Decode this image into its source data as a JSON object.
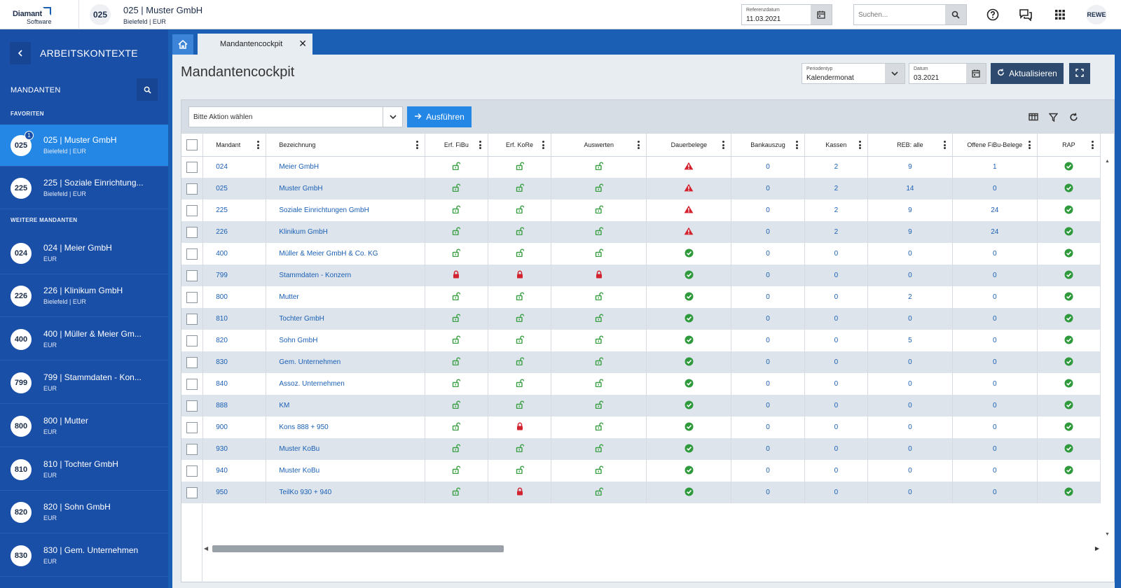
{
  "app": {
    "logo_line1": "Diamant",
    "logo_line2": "Software",
    "tenant_code": "025",
    "tenant_name": "025 | Muster GmbH",
    "tenant_sub": "Bielefeld | EUR",
    "ref_label": "Referenzdatum",
    "ref_value": "11.03.2021",
    "search_placeholder": "Suchen...",
    "user": "REWE"
  },
  "sidebar": {
    "title": "ARBEITSKONTEXTE",
    "section": "MANDANTEN",
    "group_favorites": "FAVORITEN",
    "group_more": "WEITERE MANDANTEN",
    "favorites": [
      {
        "code": "025",
        "name": "025 | Muster GmbH",
        "sub": "Bielefeld | EUR",
        "badge": "1"
      },
      {
        "code": "225",
        "name": "225 | Soziale Einrichtung...",
        "sub": "Bielefeld | EUR"
      }
    ],
    "more": [
      {
        "code": "024",
        "name": "024 | Meier GmbH",
        "sub": "EUR"
      },
      {
        "code": "226",
        "name": "226 | Klinikum GmbH",
        "sub": "Bielefeld | EUR"
      },
      {
        "code": "400",
        "name": "400 | Müller & Meier Gm...",
        "sub": "EUR"
      },
      {
        "code": "799",
        "name": "799 | Stammdaten - Kon...",
        "sub": "EUR"
      },
      {
        "code": "800",
        "name": "800 | Mutter",
        "sub": "EUR"
      },
      {
        "code": "810",
        "name": "810 | Tochter GmbH",
        "sub": "EUR"
      },
      {
        "code": "820",
        "name": "820 | Sohn GmbH",
        "sub": "EUR"
      },
      {
        "code": "830",
        "name": "830 | Gem. Unternehmen",
        "sub": "EUR"
      }
    ]
  },
  "tabs": {
    "active": "Mandantencockpit"
  },
  "page": {
    "title": "Mandantencockpit",
    "period_label": "Periodentyp",
    "period_value": "Kalendermonat",
    "date_label": "Datum",
    "date_value": "03.2021",
    "refresh_label": "Aktualisieren",
    "action_placeholder": "Bitte Aktion wählen",
    "run_label": "Ausführen"
  },
  "colors": {
    "sidebar": "#1a4fa8",
    "accent": "#2487e6",
    "ok": "#2e9a3c",
    "lock_open": "#3aa043",
    "lock_closed": "#d3232f",
    "warn": "#d3232f"
  },
  "table": {
    "headers": [
      "Mandant",
      "Bezeichnung",
      "Erf. FiBu",
      "Erf. KoRe",
      "Auswerten",
      "Dauerbelege",
      "Bankauszug",
      "Kassen",
      "REB: alle",
      "Offene FiBu-Belege",
      "RAP"
    ],
    "rows": [
      {
        "m": "024",
        "b": "Meier GmbH",
        "fibu": "open",
        "kore": "open",
        "ausw": "open",
        "dauer": "warn",
        "bank": "0",
        "kassen": "2",
        "reb": "9",
        "offen": "1",
        "rap": "ok"
      },
      {
        "m": "025",
        "b": "Muster GmbH",
        "fibu": "open",
        "kore": "open",
        "ausw": "open",
        "dauer": "warn",
        "bank": "0",
        "kassen": "2",
        "reb": "14",
        "offen": "0",
        "rap": "ok"
      },
      {
        "m": "225",
        "b": "Soziale Einrichtungen GmbH",
        "fibu": "open",
        "kore": "open",
        "ausw": "open",
        "dauer": "warn",
        "bank": "0",
        "kassen": "2",
        "reb": "9",
        "offen": "24",
        "rap": "ok"
      },
      {
        "m": "226",
        "b": "Klinikum GmbH",
        "fibu": "open",
        "kore": "open",
        "ausw": "open",
        "dauer": "warn",
        "bank": "0",
        "kassen": "2",
        "reb": "9",
        "offen": "24",
        "rap": "ok"
      },
      {
        "m": "400",
        "b": "Müller & Meier GmbH & Co. KG",
        "fibu": "open",
        "kore": "open",
        "ausw": "open",
        "dauer": "ok",
        "bank": "0",
        "kassen": "0",
        "reb": "0",
        "offen": "0",
        "rap": "ok"
      },
      {
        "m": "799",
        "b": "Stammdaten - Konzern",
        "fibu": "closed",
        "kore": "closed",
        "ausw": "closed",
        "dauer": "ok",
        "bank": "0",
        "kassen": "0",
        "reb": "0",
        "offen": "0",
        "rap": "ok"
      },
      {
        "m": "800",
        "b": "Mutter",
        "fibu": "open",
        "kore": "open",
        "ausw": "open",
        "dauer": "ok",
        "bank": "0",
        "kassen": "0",
        "reb": "2",
        "offen": "0",
        "rap": "ok"
      },
      {
        "m": "810",
        "b": "Tochter GmbH",
        "fibu": "open",
        "kore": "open",
        "ausw": "open",
        "dauer": "ok",
        "bank": "0",
        "kassen": "0",
        "reb": "0",
        "offen": "0",
        "rap": "ok"
      },
      {
        "m": "820",
        "b": "Sohn GmbH",
        "fibu": "open",
        "kore": "open",
        "ausw": "open",
        "dauer": "ok",
        "bank": "0",
        "kassen": "0",
        "reb": "5",
        "offen": "0",
        "rap": "ok"
      },
      {
        "m": "830",
        "b": "Gem. Unternehmen",
        "fibu": "open",
        "kore": "open",
        "ausw": "open",
        "dauer": "ok",
        "bank": "0",
        "kassen": "0",
        "reb": "0",
        "offen": "0",
        "rap": "ok"
      },
      {
        "m": "840",
        "b": "Assoz. Unternehmen",
        "fibu": "open",
        "kore": "open",
        "ausw": "open",
        "dauer": "ok",
        "bank": "0",
        "kassen": "0",
        "reb": "0",
        "offen": "0",
        "rap": "ok"
      },
      {
        "m": "888",
        "b": "KM",
        "fibu": "open",
        "kore": "open",
        "ausw": "open",
        "dauer": "ok",
        "bank": "0",
        "kassen": "0",
        "reb": "0",
        "offen": "0",
        "rap": "ok"
      },
      {
        "m": "900",
        "b": "Kons 888 + 950",
        "fibu": "open",
        "kore": "closed",
        "ausw": "open",
        "dauer": "ok",
        "bank": "0",
        "kassen": "0",
        "reb": "0",
        "offen": "0",
        "rap": "ok"
      },
      {
        "m": "930",
        "b": "Muster KoBu",
        "fibu": "open",
        "kore": "open",
        "ausw": "open",
        "dauer": "ok",
        "bank": "0",
        "kassen": "0",
        "reb": "0",
        "offen": "0",
        "rap": "ok"
      },
      {
        "m": "940",
        "b": "Muster KoBu",
        "fibu": "open",
        "kore": "open",
        "ausw": "open",
        "dauer": "ok",
        "bank": "0",
        "kassen": "0",
        "reb": "0",
        "offen": "0",
        "rap": "ok"
      },
      {
        "m": "950",
        "b": "TeilKo 930 + 940",
        "fibu": "open",
        "kore": "closed",
        "ausw": "open",
        "dauer": "ok",
        "bank": "0",
        "kassen": "0",
        "reb": "0",
        "offen": "0",
        "rap": "ok"
      }
    ]
  }
}
